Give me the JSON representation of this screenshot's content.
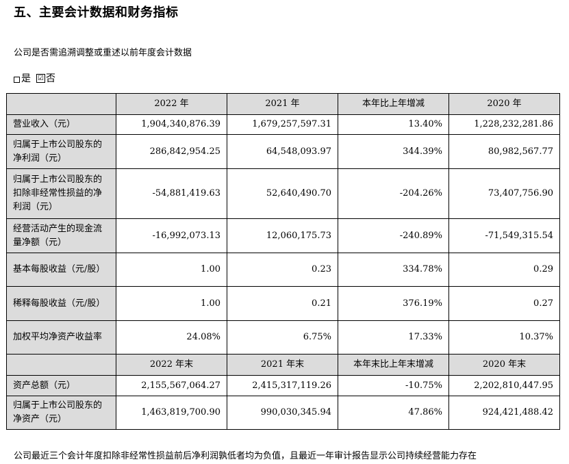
{
  "heading": "五、主要会计数据和财务指标",
  "question": "公司是否需追溯调整或重述以前年度会计数据",
  "answer": {
    "yes_label": "是",
    "no_label": "否",
    "checked_mark": "☑"
  },
  "table1": {
    "headers": [
      "2022 年",
      "2021 年",
      "本年比上年增减",
      "2020 年"
    ],
    "rows": [
      {
        "label": "营业收入（元）",
        "values": [
          "1,904,340,876.39",
          "1,679,257,597.31",
          "13.40%",
          "1,228,232,281.86"
        ]
      },
      {
        "label": "归属于上市公司股东的净利润（元）",
        "values": [
          "286,842,954.25",
          "64,548,093.97",
          "344.39%",
          "80,982,567.77"
        ]
      },
      {
        "label": "归属于上市公司股东的扣除非经常性损益的净利润（元）",
        "values": [
          "-54,881,419.63",
          "52,640,490.70",
          "-204.26%",
          "73,407,756.90"
        ]
      },
      {
        "label": "经营活动产生的现金流量净额（元）",
        "values": [
          "-16,992,073.13",
          "12,060,175.73",
          "-240.89%",
          "-71,549,315.54"
        ]
      },
      {
        "label": "基本每股收益（元/股）",
        "values": [
          "1.00",
          "0.23",
          "334.78%",
          "0.29"
        ]
      },
      {
        "label": "稀释每股收益（元/股）",
        "values": [
          "1.00",
          "0.21",
          "376.19%",
          "0.27"
        ]
      },
      {
        "label": "加权平均净资产收益率",
        "values": [
          "24.08%",
          "6.75%",
          "17.33%",
          "10.37%"
        ]
      }
    ]
  },
  "table2": {
    "headers": [
      "2022 年末",
      "2021 年末",
      "本年末比上年末增减",
      "2020 年末"
    ],
    "rows": [
      {
        "label": "资产总额（元）",
        "values": [
          "2,155,567,064.27",
          "2,415,317,119.26",
          "-10.75%",
          "2,202,810,447.95"
        ]
      },
      {
        "label": "归属于上市公司股东的净资产（元）",
        "values": [
          "1,463,819,700.90",
          "990,030,345.94",
          "47.86%",
          "924,421,488.42"
        ]
      }
    ]
  },
  "footer": "公司最近三个会计年度扣除非经常性损益前后净利润孰低者均为负值，且最近一年审计报告显示公司持续经营能力存在"
}
